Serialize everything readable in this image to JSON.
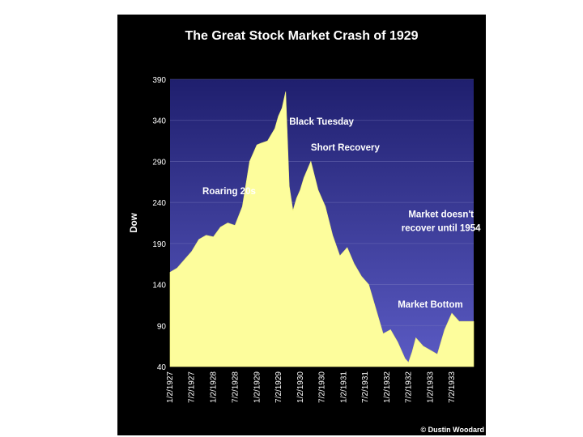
{
  "chart_data": {
    "type": "area",
    "title": "The Great Stock Market Crash of 1929",
    "ylabel": "Dow",
    "xlabel": "",
    "ylim": [
      40,
      390
    ],
    "yticks": [
      390,
      340,
      290,
      240,
      190,
      140,
      90,
      40
    ],
    "xticks": [
      "1/2/1927",
      "7/2/1927",
      "1/2/1928",
      "7/2/1928",
      "1/2/1929",
      "7/2/1929",
      "1/2/1930",
      "7/2/1930",
      "1/2/1931",
      "7/2/1931",
      "1/2/1932",
      "7/2/1932",
      "1/2/1933",
      "7/2/1933"
    ],
    "grid": true,
    "fill_color": "#fdfd9c",
    "background_top": "#1f1f6e",
    "background_bottom": "#5b5bc4",
    "series": [
      {
        "x": [
          "1927-01",
          "1927-03",
          "1927-05",
          "1927-07",
          "1927-09",
          "1927-11",
          "1928-01",
          "1928-03",
          "1928-05",
          "1928-07",
          "1928-09",
          "1928-11",
          "1929-01",
          "1929-02",
          "1929-04",
          "1929-06",
          "1929-07",
          "1929-08",
          "1929-09",
          "1929-10",
          "1929-11",
          "1929-12",
          "1930-01",
          "1930-02",
          "1930-04",
          "1930-06",
          "1930-08",
          "1930-10",
          "1930-12",
          "1931-02",
          "1931-04",
          "1931-06",
          "1931-08",
          "1931-10",
          "1931-12",
          "1932-02",
          "1932-04",
          "1932-06",
          "1932-07",
          "1932-08",
          "1932-09",
          "1932-11",
          "1933-01",
          "1933-03",
          "1933-05",
          "1933-07",
          "1933-09",
          "1933-11"
        ],
        "values": [
          155,
          160,
          170,
          180,
          195,
          200,
          198,
          210,
          215,
          212,
          235,
          290,
          310,
          312,
          315,
          330,
          345,
          355,
          375,
          260,
          230,
          245,
          255,
          270,
          290,
          255,
          235,
          200,
          175,
          185,
          165,
          150,
          140,
          110,
          80,
          85,
          70,
          50,
          45,
          58,
          75,
          65,
          60,
          55,
          85,
          105,
          95,
          95
        ]
      }
    ],
    "annotations": [
      {
        "text": "Roaring 20s",
        "x": "1927-10",
        "y": 250
      },
      {
        "text": "Black Tuesday",
        "x": "1929-10",
        "y": 335
      },
      {
        "text": "Short Recovery",
        "x": "1930-04",
        "y": 303
      },
      {
        "text": "Market doesn't",
        "x": "1933-04",
        "y": 222
      },
      {
        "text": "recover until 1954",
        "x": "1933-04",
        "y": 205
      },
      {
        "text": "Market Bottom",
        "x": "1933-01",
        "y": 112
      }
    ],
    "credit": "© Dustin Woodard"
  }
}
